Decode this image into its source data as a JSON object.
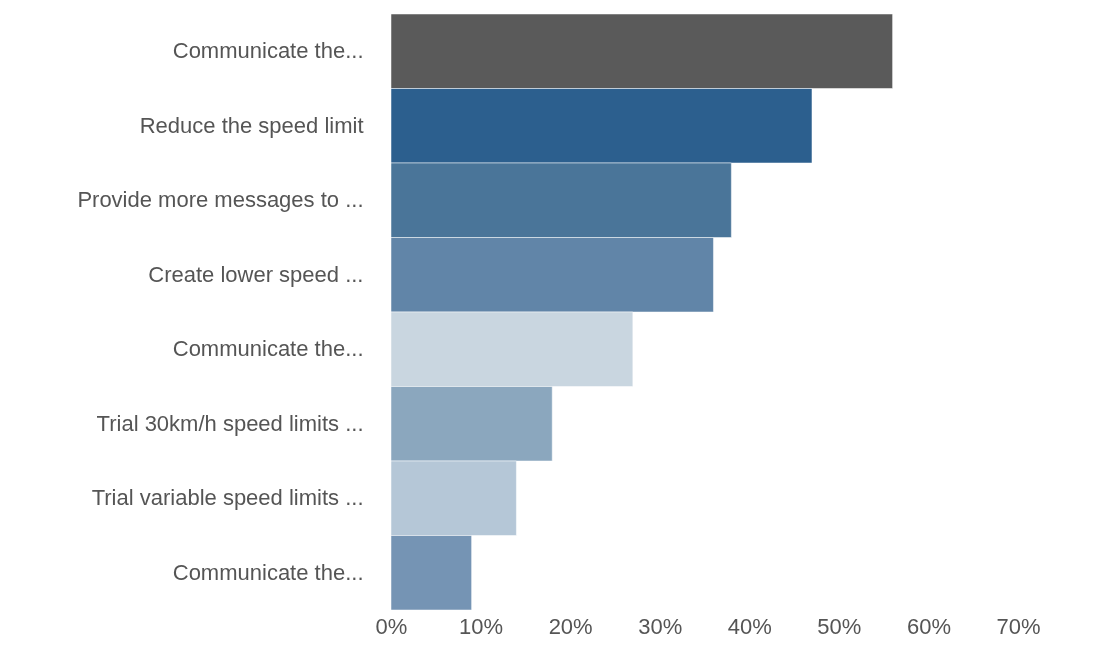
{
  "chart_data": {
    "type": "bar",
    "orientation": "horizontal",
    "categories": [
      "Communicate the...",
      "Reduce the speed limit",
      "Provide more messages to ...",
      "Create lower speed ...",
      "Communicate the...",
      "Trial 30km/h speed limits ...",
      "Trial variable speed limits ...",
      "Communicate the..."
    ],
    "values": [
      56,
      47,
      38,
      36,
      27,
      18,
      14,
      9
    ],
    "colors": [
      "#5a5a5a",
      "#2c5f8e",
      "#4a7599",
      "#6185a8",
      "#c9d6e0",
      "#8ba7be",
      "#b5c7d7",
      "#7594b4"
    ],
    "xlim": [
      0,
      70
    ],
    "xticks": [
      {
        "value": 0,
        "label": "0%"
      },
      {
        "value": 10,
        "label": "10%"
      },
      {
        "value": 20,
        "label": "20%"
      },
      {
        "value": 30,
        "label": "30%"
      },
      {
        "value": 40,
        "label": "40%"
      },
      {
        "value": 50,
        "label": "50%"
      },
      {
        "value": 60,
        "label": "60%"
      },
      {
        "value": 70,
        "label": "70%"
      }
    ],
    "grid": false
  }
}
